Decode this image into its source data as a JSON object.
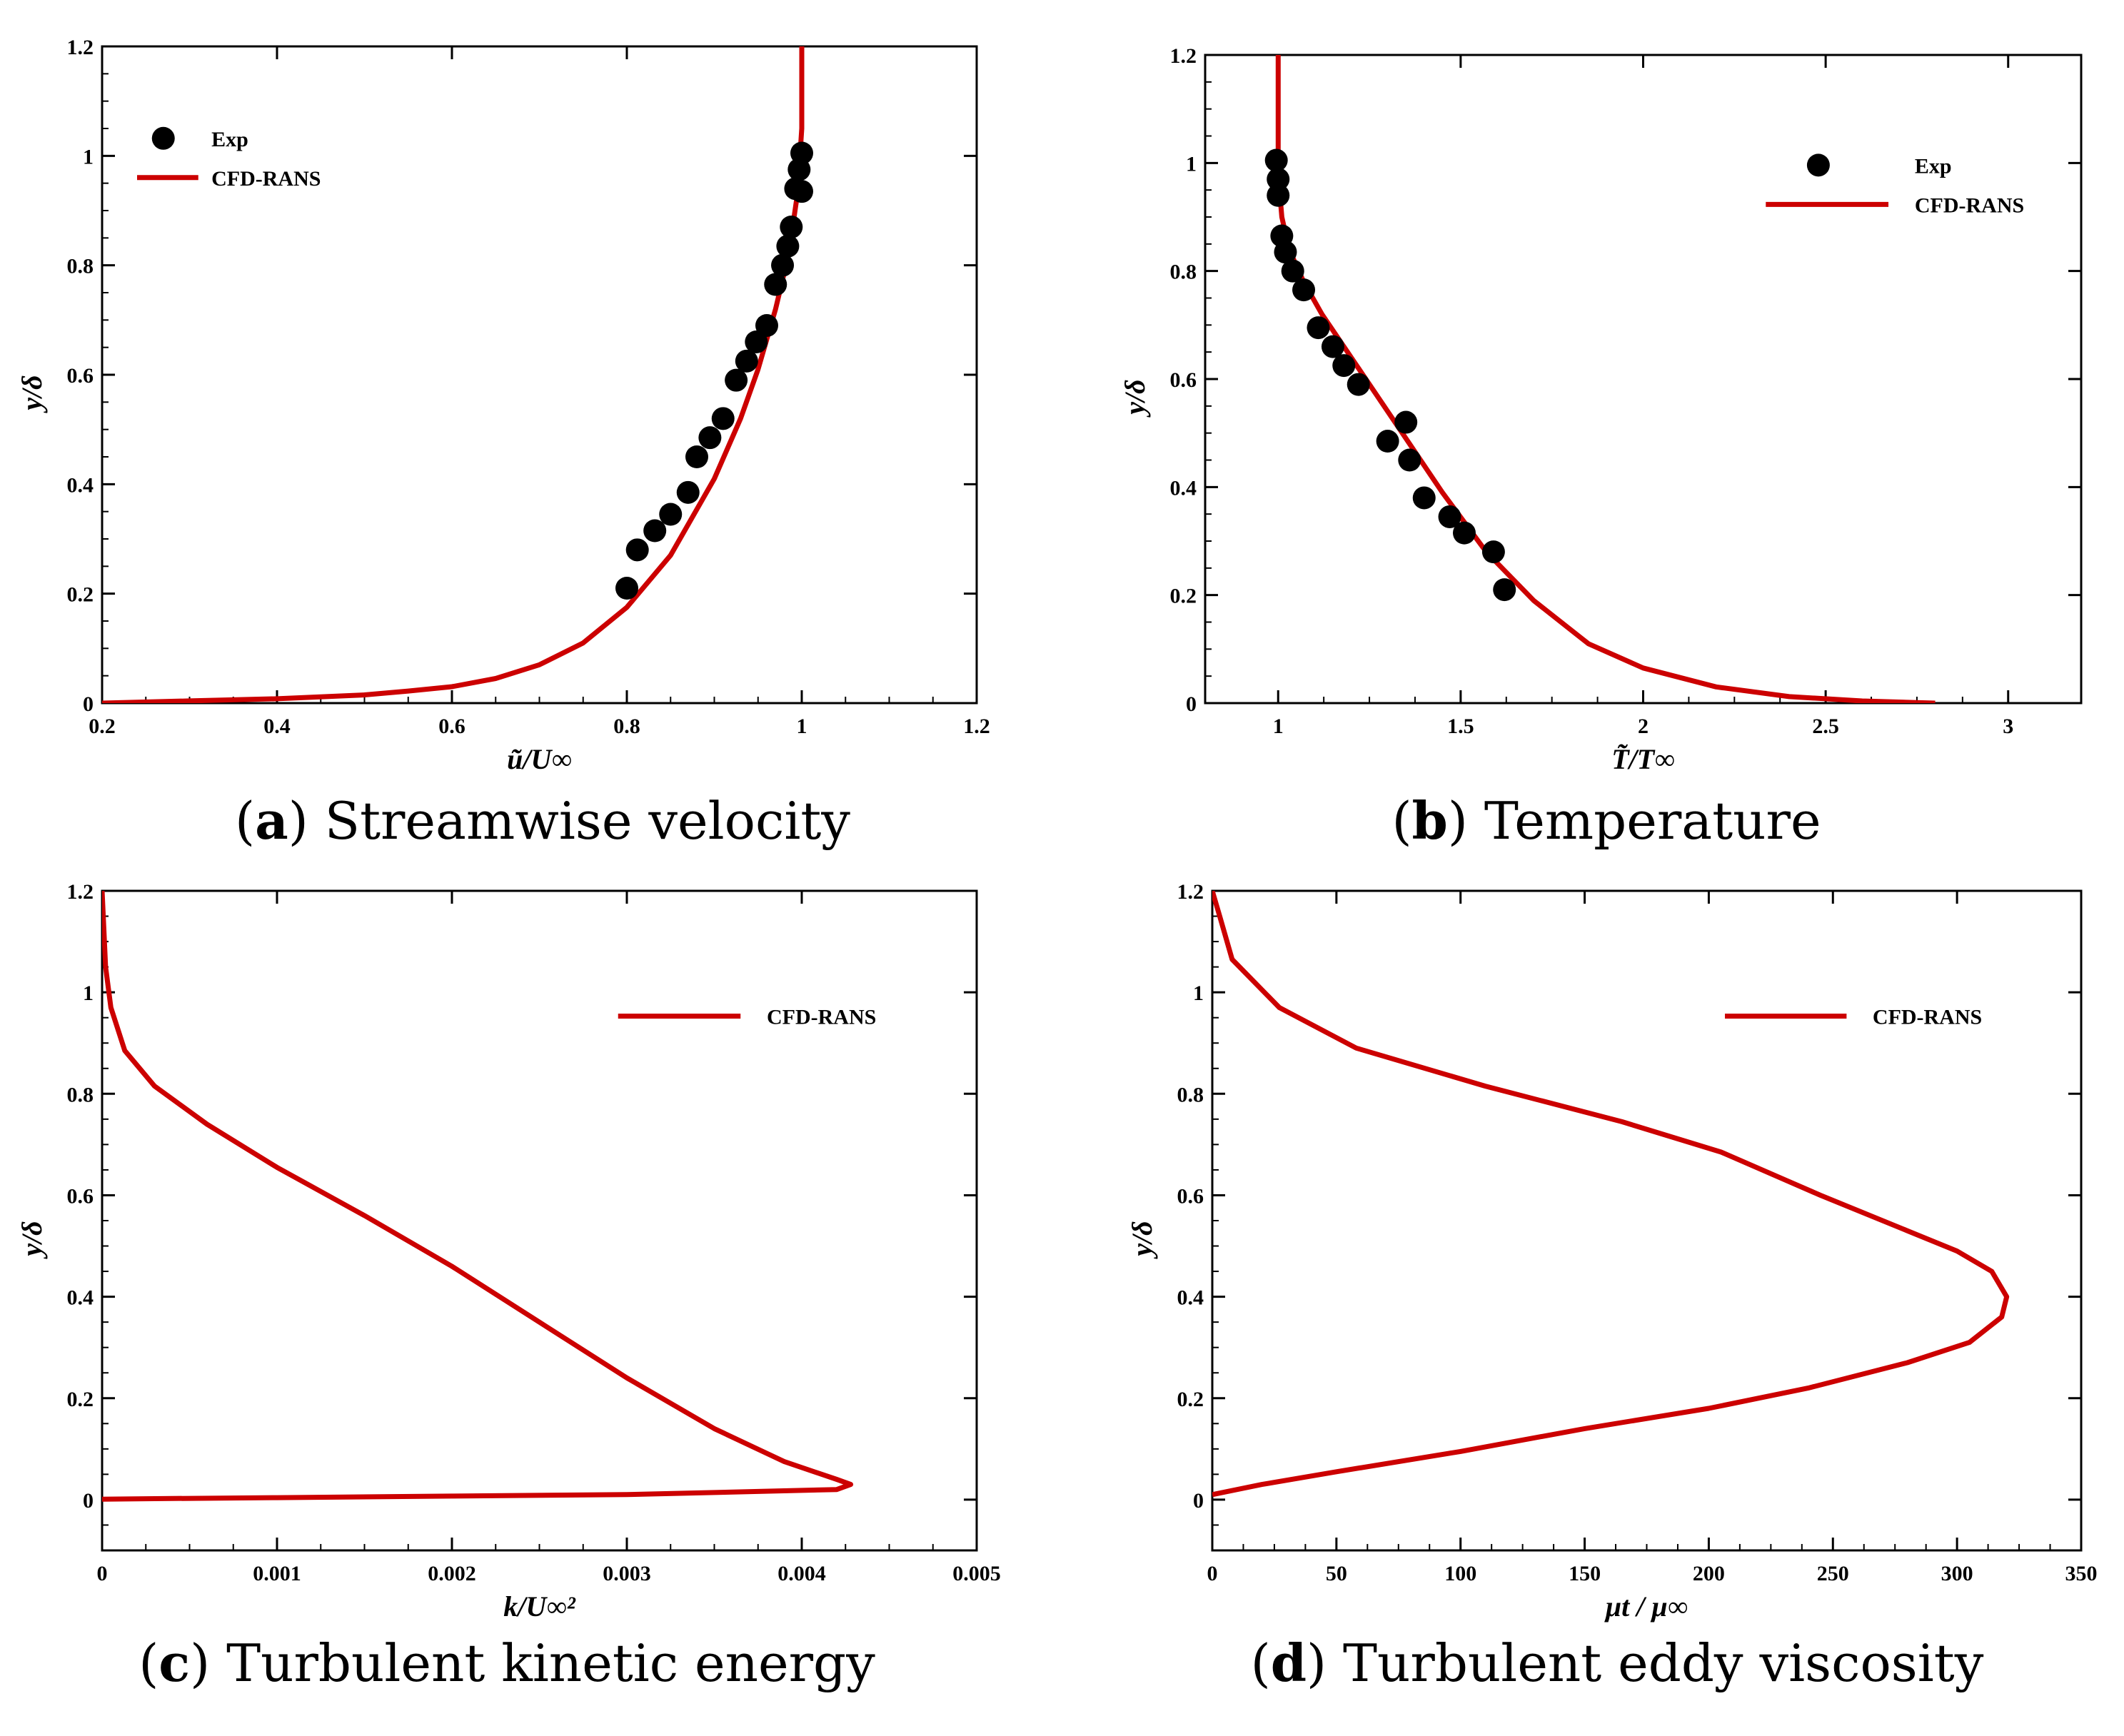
{
  "colors": {
    "line": "#cc0000",
    "marker": "#000000",
    "axis": "#000000"
  },
  "chart_data": [
    {
      "id": "a",
      "type": "line",
      "caption_letter": "a",
      "caption_text": "Streamwise velocity",
      "xlabel": "ũ/U∞",
      "ylabel": "y/δ",
      "xlim": [
        0.2,
        1.2
      ],
      "ylim": [
        0,
        1.2
      ],
      "xticks": [
        "0.2",
        "0.4",
        "0.6",
        "0.8",
        "1",
        "1.2"
      ],
      "yticks": [
        "0",
        "0.2",
        "0.4",
        "0.6",
        "0.8",
        "1",
        "1.2"
      ],
      "legend": {
        "position": "top-left",
        "exp_label": "Exp",
        "line_label": "CFD-RANS"
      },
      "series": [
        {
          "name": "CFD-RANS",
          "x": [
            0.2,
            0.3,
            0.4,
            0.5,
            0.55,
            0.6,
            0.65,
            0.7,
            0.75,
            0.8,
            0.85,
            0.9,
            0.93,
            0.95,
            0.97,
            0.985,
            0.995,
            1.0,
            1.0
          ],
          "y": [
            0.0,
            0.004,
            0.008,
            0.015,
            0.022,
            0.03,
            0.045,
            0.07,
            0.11,
            0.175,
            0.27,
            0.41,
            0.52,
            0.61,
            0.72,
            0.82,
            0.93,
            1.05,
            1.2
          ]
        },
        {
          "name": "Exp",
          "x": [
            0.8,
            0.812,
            0.832,
            0.85,
            0.87,
            0.88,
            0.895,
            0.91,
            0.925,
            0.937,
            0.948,
            0.96,
            0.97,
            0.978,
            0.984,
            0.988,
            0.993,
            0.997,
            1.0,
            1.0
          ],
          "y": [
            0.21,
            0.28,
            0.315,
            0.345,
            0.385,
            0.45,
            0.485,
            0.52,
            0.59,
            0.625,
            0.66,
            0.69,
            0.765,
            0.8,
            0.835,
            0.87,
            0.94,
            0.975,
            1.005,
            0.935
          ]
        }
      ]
    },
    {
      "id": "b",
      "type": "line",
      "caption_letter": "b",
      "caption_text": "Temperature",
      "xlabel": "T̃/T∞",
      "ylabel": "y/δ",
      "xlim": [
        0.8,
        3.2
      ],
      "ylim": [
        0,
        1.2
      ],
      "xticks": [
        "1",
        "1.5",
        "2",
        "2.5",
        "3"
      ],
      "yticks": [
        "0",
        "0.2",
        "0.4",
        "0.6",
        "0.8",
        "1",
        "1.2"
      ],
      "legend": {
        "position": "top-right",
        "exp_label": "Exp",
        "line_label": "CFD-RANS"
      },
      "series": [
        {
          "name": "CFD-RANS",
          "x": [
            1.0,
            1.0,
            1.01,
            1.03,
            1.07,
            1.12,
            1.18,
            1.26,
            1.35,
            1.45,
            1.57,
            1.7,
            1.85,
            2.0,
            2.2,
            2.4,
            2.6,
            2.8
          ],
          "y": [
            1.2,
            0.98,
            0.9,
            0.84,
            0.78,
            0.72,
            0.66,
            0.58,
            0.49,
            0.39,
            0.28,
            0.19,
            0.11,
            0.065,
            0.03,
            0.012,
            0.004,
            0.0
          ]
        },
        {
          "name": "Exp",
          "x": [
            0.995,
            1.0,
            1.0,
            1.01,
            1.02,
            1.04,
            1.07,
            1.11,
            1.15,
            1.18,
            1.22,
            1.3,
            1.35,
            1.36,
            1.4,
            1.47,
            1.51,
            1.59,
            1.62
          ],
          "y": [
            1.005,
            0.97,
            0.94,
            0.865,
            0.835,
            0.8,
            0.765,
            0.695,
            0.66,
            0.625,
            0.59,
            0.485,
            0.52,
            0.45,
            0.38,
            0.345,
            0.315,
            0.28,
            0.21
          ]
        }
      ]
    },
    {
      "id": "c",
      "type": "line",
      "caption_letter": "c",
      "caption_text": "Turbulent kinetic energy",
      "xlabel": "k/U∞²",
      "ylabel": "y/δ",
      "xlim": [
        0,
        0.005
      ],
      "ylim": [
        -0.1,
        1.2
      ],
      "xticks": [
        "0",
        "0.001",
        "0.002",
        "0.003",
        "0.004",
        "0.005"
      ],
      "yticks": [
        "0",
        "0.2",
        "0.4",
        "0.6",
        "0.8",
        "1",
        "1.2"
      ],
      "legend": {
        "position": "top-right",
        "line_label": "CFD-RANS"
      },
      "series": [
        {
          "name": "CFD-RANS",
          "x": [
            0.0,
            2e-05,
            5e-05,
            0.00013,
            0.0003,
            0.0006,
            0.001,
            0.0015,
            0.002,
            0.0025,
            0.003,
            0.0035,
            0.0039,
            0.0042,
            0.00428,
            0.0042,
            0.003,
            0.002,
            0.001,
            0.0003,
            0.0
          ],
          "y": [
            1.2,
            1.05,
            0.97,
            0.885,
            0.815,
            0.74,
            0.655,
            0.56,
            0.46,
            0.35,
            0.24,
            0.14,
            0.075,
            0.04,
            0.03,
            0.02,
            0.01,
            0.007,
            0.004,
            0.002,
            0.001
          ]
        }
      ]
    },
    {
      "id": "d",
      "type": "line",
      "caption_letter": "d",
      "caption_text": "Turbulent eddy viscosity",
      "xlabel": "μt / μ∞",
      "ylabel": "y/δ",
      "xlim": [
        0,
        350
      ],
      "ylim": [
        -0.1,
        1.2
      ],
      "xticks": [
        "0",
        "50",
        "100",
        "150",
        "200",
        "250",
        "300",
        "350"
      ],
      "yticks": [
        "0",
        "0.2",
        "0.4",
        "0.6",
        "0.8",
        "1",
        "1.2"
      ],
      "legend": {
        "position": "top-right",
        "line_label": "CFD-RANS"
      },
      "series": [
        {
          "name": "CFD-RANS",
          "x": [
            0,
            3,
            8,
            27,
            58,
            110,
            165,
            205,
            245,
            280,
            300,
            314,
            320,
            318,
            305,
            280,
            240,
            200,
            150,
            100,
            50,
            20,
            0
          ],
          "y": [
            1.2,
            1.15,
            1.065,
            0.97,
            0.89,
            0.815,
            0.745,
            0.685,
            0.6,
            0.53,
            0.49,
            0.45,
            0.4,
            0.36,
            0.31,
            0.27,
            0.22,
            0.18,
            0.14,
            0.095,
            0.055,
            0.03,
            0.01
          ]
        }
      ]
    }
  ]
}
